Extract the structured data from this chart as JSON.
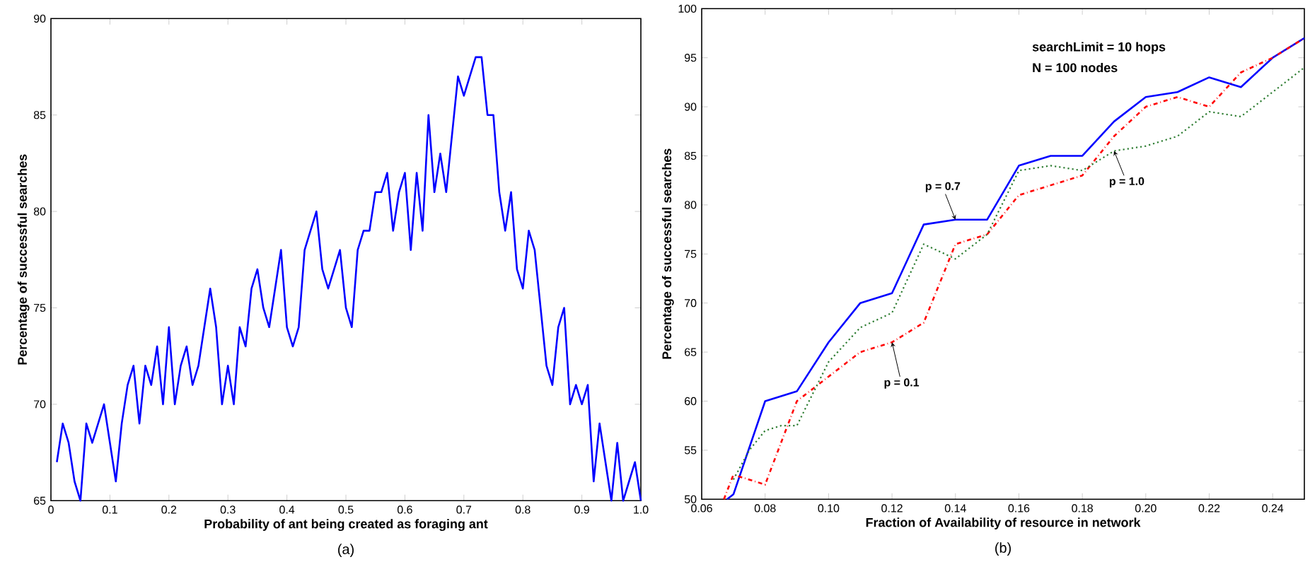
{
  "chart_data": [
    {
      "type": "line",
      "xlabel": "Probability of ant being created as foraging ant",
      "ylabel": "Percentage of successful searches",
      "annotations": [
        "(a)"
      ],
      "xlim": [
        0,
        1
      ],
      "ylim": [
        65,
        90
      ],
      "xticks": [
        0,
        0.1,
        0.2,
        0.3,
        0.4,
        0.5,
        0.6,
        0.7,
        0.8,
        0.9,
        {
          "value": 1,
          "label": "1.0"
        }
      ],
      "yticks": [
        65,
        70,
        75,
        80,
        85,
        90
      ],
      "series": [
        {
          "color": "#0000ff",
          "line_style": "solid",
          "x": [
            0.01,
            0.02,
            0.03,
            0.04,
            0.05,
            0.06,
            0.07,
            0.08,
            0.09,
            0.1,
            0.11,
            0.12,
            0.13,
            0.14,
            0.15,
            0.16,
            0.17,
            0.18,
            0.19,
            0.2,
            0.21,
            0.22,
            0.23,
            0.24,
            0.25,
            0.26,
            0.27,
            0.28,
            0.29,
            0.3,
            0.31,
            0.32,
            0.33,
            0.34,
            0.35,
            0.36,
            0.37,
            0.38,
            0.39,
            0.4,
            0.41,
            0.42,
            0.43,
            0.44,
            0.45,
            0.46,
            0.47,
            0.48,
            0.49,
            0.5,
            0.51,
            0.52,
            0.53,
            0.54,
            0.55,
            0.56,
            0.57,
            0.58,
            0.59,
            0.6,
            0.61,
            0.62,
            0.63,
            0.64,
            0.65,
            0.66,
            0.67,
            0.68,
            0.69,
            0.7,
            0.71,
            0.72,
            0.73,
            0.74,
            0.75,
            0.76,
            0.77,
            0.78,
            0.79,
            0.8,
            0.81,
            0.82,
            0.83,
            0.84,
            0.85,
            0.86,
            0.87,
            0.88,
            0.89,
            0.9,
            0.91,
            0.92,
            0.93,
            0.94,
            0.95,
            0.96,
            0.97,
            0.98,
            0.99,
            1.0
          ],
          "values": [
            67,
            69,
            68,
            66,
            65,
            69,
            68,
            69,
            70,
            68,
            66,
            69,
            71,
            72,
            69,
            72,
            71,
            73,
            70,
            74,
            70,
            72,
            73,
            71,
            72,
            74,
            76,
            74,
            70,
            72,
            70,
            74,
            73,
            76,
            77,
            75,
            74,
            76,
            78,
            74,
            73,
            74,
            78,
            79,
            80,
            77,
            76,
            77,
            78,
            75,
            74,
            78,
            79,
            79,
            81,
            81,
            82,
            79,
            81,
            82,
            78,
            82,
            79,
            85,
            81,
            83,
            81,
            84,
            87,
            86,
            87,
            88,
            88,
            85,
            85,
            81,
            79,
            81,
            77,
            76,
            79,
            78,
            75,
            72,
            71,
            74,
            75,
            70,
            71,
            70,
            71,
            66,
            69,
            67,
            65,
            68,
            65,
            66,
            67,
            65
          ]
        }
      ]
    },
    {
      "type": "line",
      "xlabel": "Fraction of Availability of resource in network",
      "ylabel": "Percentage of successful searches",
      "annotations": [
        "searchLimit = 10 hops",
        "N = 100 nodes",
        "(b)"
      ],
      "xlim": [
        0.06,
        0.25
      ],
      "ylim": [
        50,
        100
      ],
      "xticks": [
        0.06,
        0.08,
        {
          "value": 0.1,
          "label": "0.10"
        },
        0.12,
        0.14,
        0.16,
        0.18,
        {
          "value": 0.2,
          "label": "0.20"
        },
        0.22,
        0.24
      ],
      "yticks": [
        50,
        55,
        60,
        65,
        70,
        75,
        80,
        85,
        90,
        95,
        100
      ],
      "series": [
        {
          "name": "p = 0.7",
          "color": "#0000ff",
          "line_style": "solid",
          "x": [
            0.068,
            0.07,
            0.08,
            0.09,
            0.1,
            0.11,
            0.12,
            0.13,
            0.14,
            0.15,
            0.16,
            0.17,
            0.18,
            0.19,
            0.2,
            0.21,
            0.22,
            0.23,
            0.24,
            0.25
          ],
          "values": [
            50,
            50.5,
            60,
            61,
            66,
            70,
            71,
            78,
            78.5,
            78.5,
            84,
            85,
            85,
            88.5,
            91,
            91.5,
            93,
            92,
            95,
            97
          ]
        },
        {
          "name": "p = 0.1",
          "color": "#ff0000",
          "line_style": "dashdot",
          "x": [
            0.067,
            0.07,
            0.08,
            0.09,
            0.1,
            0.11,
            0.12,
            0.13,
            0.14,
            0.15,
            0.16,
            0.17,
            0.18,
            0.19,
            0.2,
            0.21,
            0.22,
            0.23,
            0.24,
            0.25
          ],
          "values": [
            50,
            52.5,
            51.5,
            60,
            62.5,
            65,
            66,
            68,
            76,
            77,
            81,
            82,
            83,
            87,
            90,
            91,
            90,
            93.5,
            95,
            97
          ]
        },
        {
          "name": "p = 1.0",
          "color": "#2e7d32",
          "line_style": "dotted",
          "x": [
            0.07,
            0.075,
            0.08,
            0.085,
            0.09,
            0.1,
            0.11,
            0.12,
            0.13,
            0.14,
            0.15,
            0.16,
            0.17,
            0.18,
            0.19,
            0.2,
            0.21,
            0.22,
            0.23,
            0.24,
            0.25
          ],
          "values": [
            52,
            55,
            57,
            57.5,
            57.5,
            64,
            67.5,
            69,
            76,
            74.5,
            77,
            83.5,
            84,
            83.5,
            85.5,
            86,
            87,
            89.5,
            89,
            91.5,
            94
          ]
        }
      ]
    }
  ]
}
